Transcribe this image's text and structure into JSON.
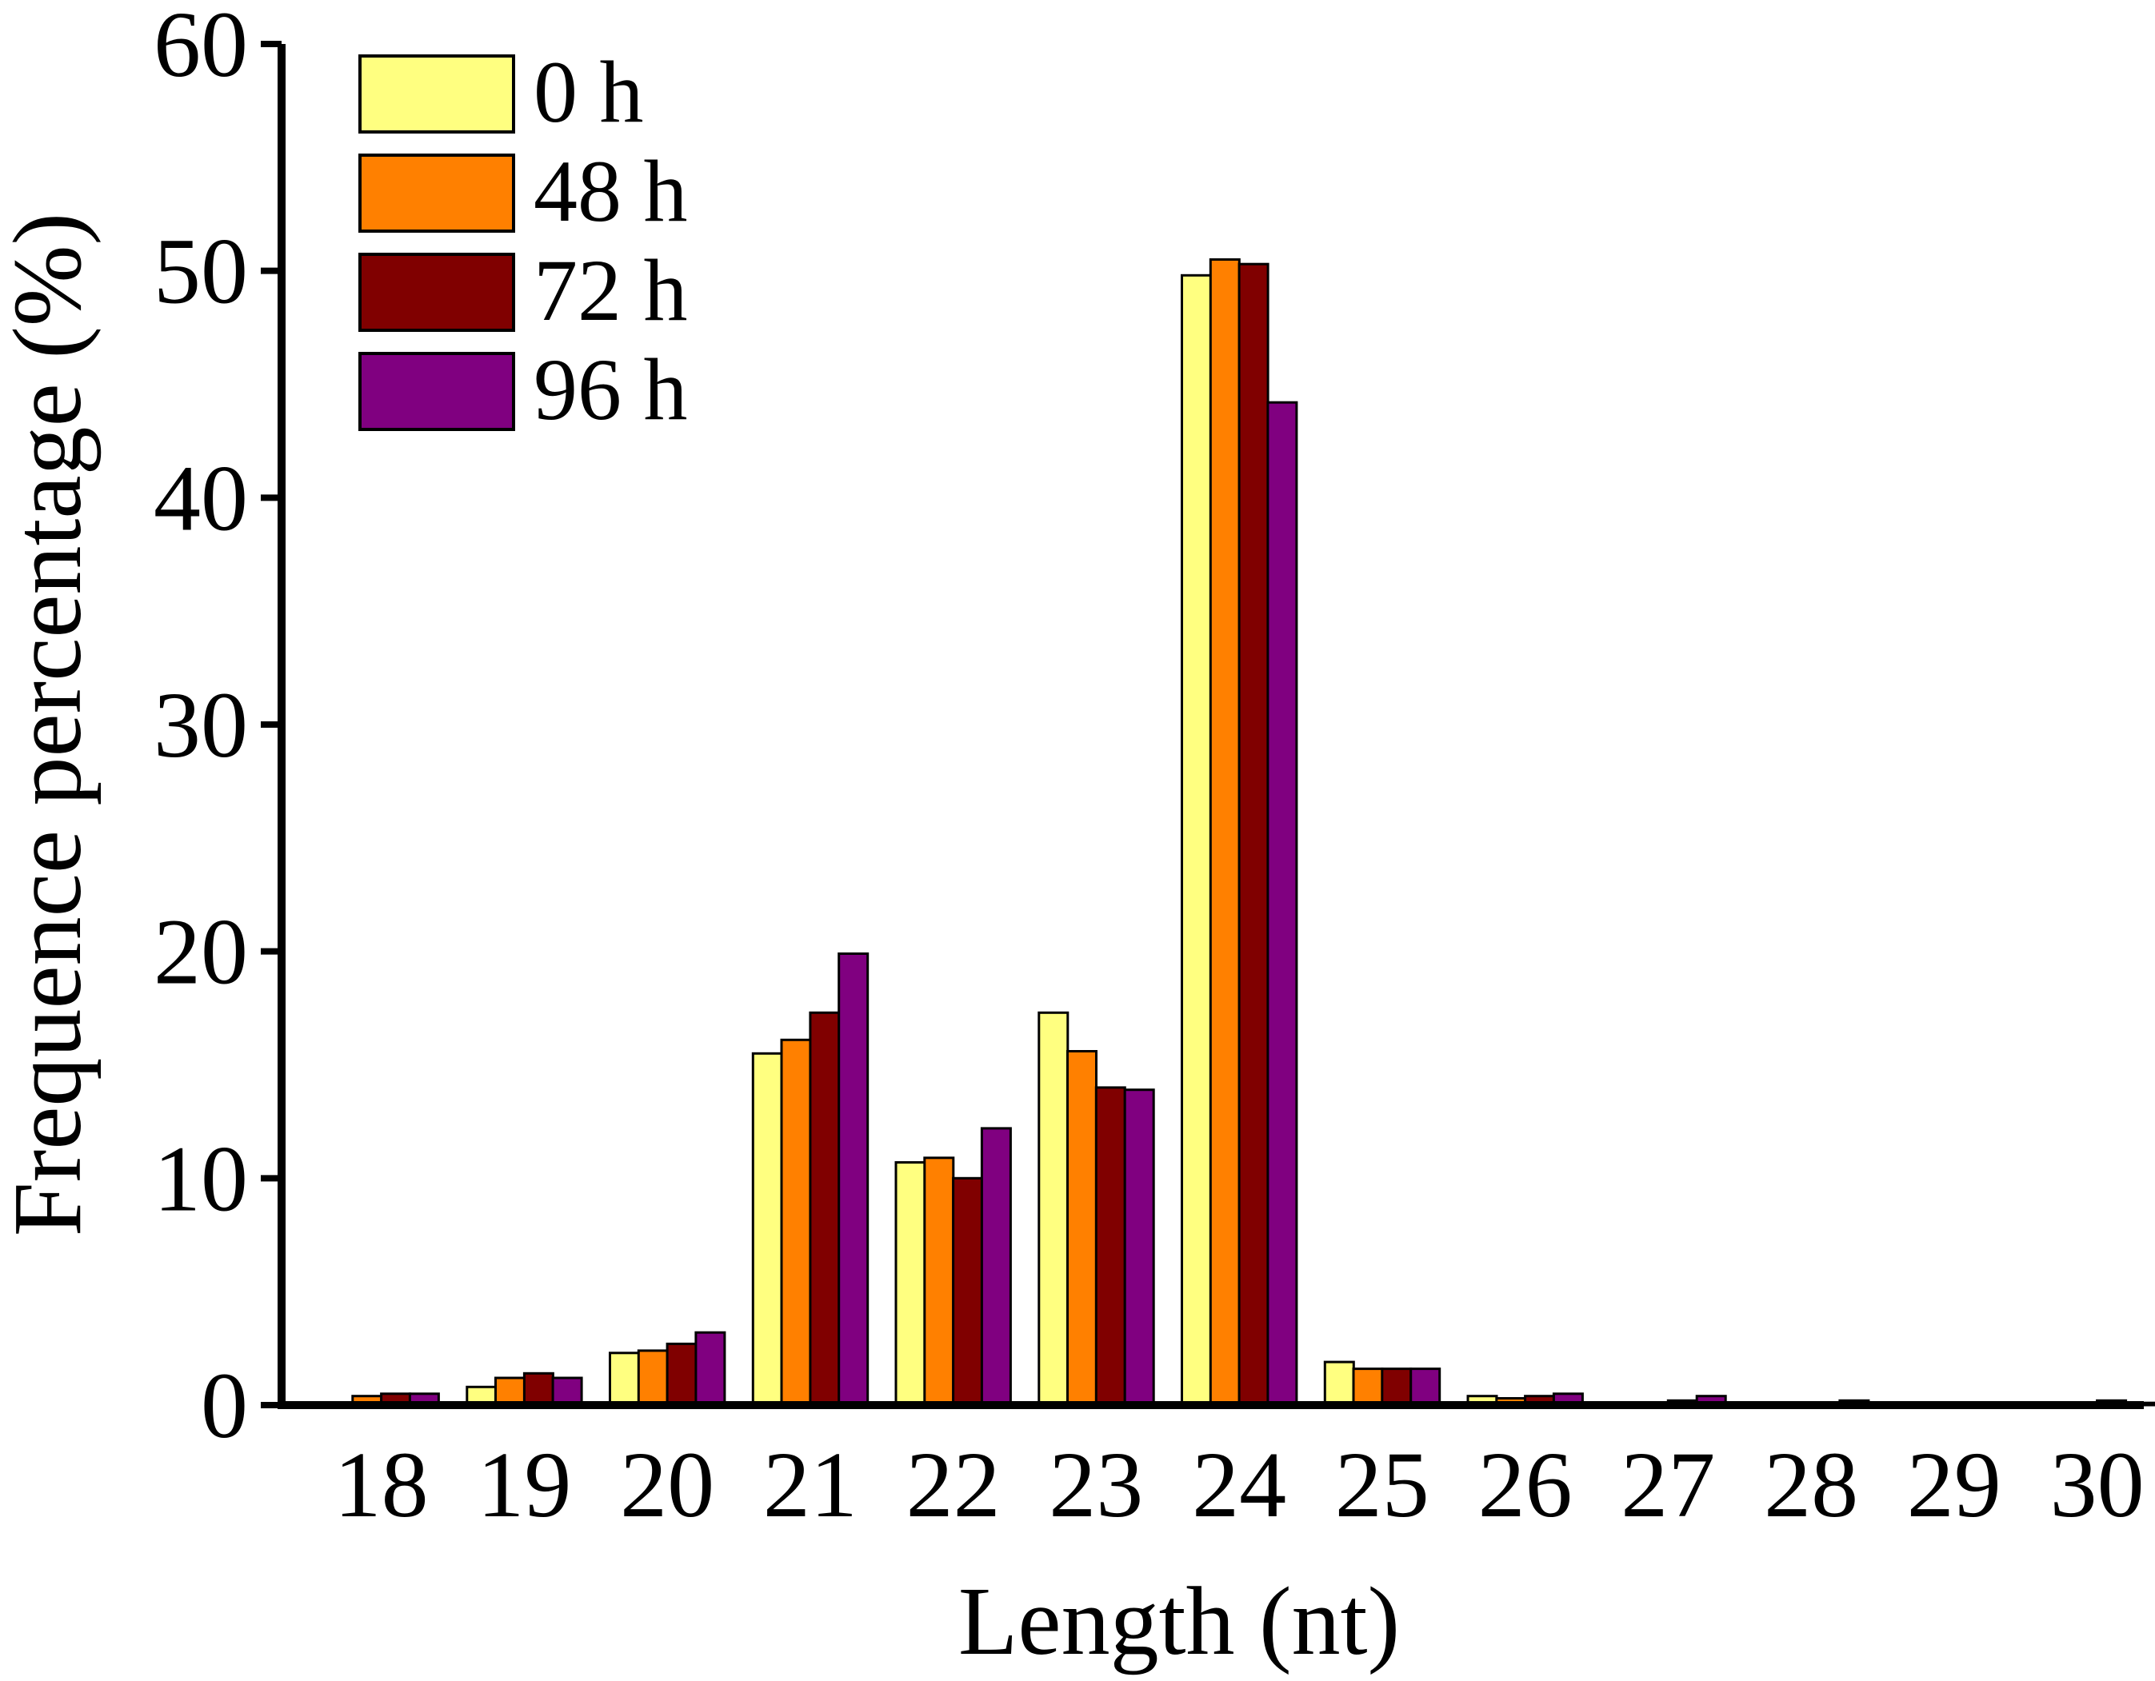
{
  "chart_data": {
    "type": "bar",
    "title": "",
    "xlabel": "Length (nt)",
    "ylabel": "Frequence percentage (%)",
    "ylim": [
      0,
      60
    ],
    "yticks": [
      "0",
      "10",
      "20",
      "30",
      "40",
      "50",
      "60"
    ],
    "categories": [
      "18",
      "19",
      "20",
      "21",
      "22",
      "23",
      "24",
      "25",
      "26",
      "27",
      "28",
      "29",
      "30"
    ],
    "legend_position": "top-left",
    "grid": false,
    "series": [
      {
        "name": "0 h",
        "color": "#FFFF80",
        "values": [
          0.1,
          0.8,
          2.3,
          15.5,
          10.7,
          17.3,
          49.8,
          1.9,
          0.4,
          0.1,
          0.05,
          0.05,
          0.05
        ]
      },
      {
        "name": "48 h",
        "color": "#FF8000",
        "values": [
          0.4,
          1.2,
          2.4,
          16.1,
          10.9,
          15.6,
          50.5,
          1.6,
          0.3,
          0.1,
          0.05,
          0.05,
          0.05
        ]
      },
      {
        "name": "72 h",
        "color": "#800000",
        "values": [
          0.5,
          1.4,
          2.7,
          17.3,
          10.0,
          14.0,
          50.3,
          1.6,
          0.4,
          0.2,
          0.1,
          0.05,
          0.2
        ]
      },
      {
        "name": "96 h",
        "color": "#800080",
        "values": [
          0.5,
          1.2,
          3.2,
          19.9,
          12.2,
          13.9,
          44.2,
          1.6,
          0.5,
          0.4,
          0.2,
          0.1,
          0.1
        ]
      }
    ]
  }
}
